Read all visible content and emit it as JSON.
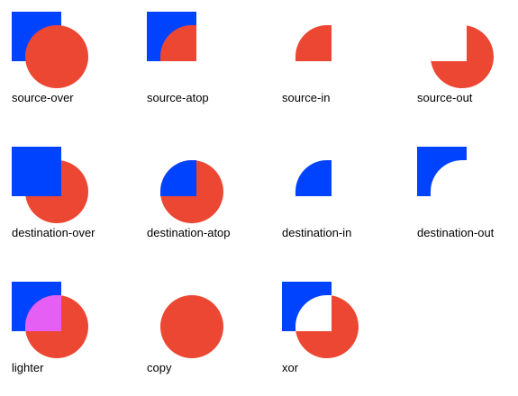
{
  "colors": {
    "square": "#0043ff",
    "circle": "#ec4733",
    "lighter_overlap": "#e65ff5",
    "background": "#ffffff",
    "text": "#000000"
  },
  "operations": [
    {
      "label": "source-over"
    },
    {
      "label": "source-atop"
    },
    {
      "label": "source-in"
    },
    {
      "label": "source-out"
    },
    {
      "label": "destination-over"
    },
    {
      "label": "destination-atop"
    },
    {
      "label": "destination-in"
    },
    {
      "label": "destination-out"
    },
    {
      "label": "lighter"
    },
    {
      "label": "copy"
    },
    {
      "label": "xor"
    }
  ]
}
